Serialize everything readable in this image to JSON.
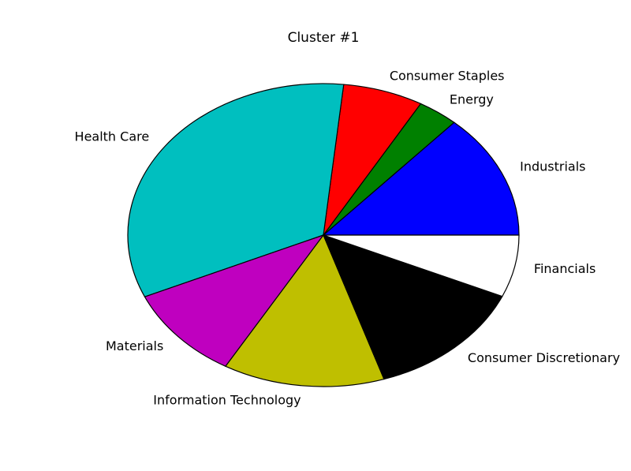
{
  "chart_data": {
    "type": "pie",
    "title": "Cluster #1",
    "start_angle_deg": 0,
    "direction": "counterclockwise",
    "slices": [
      {
        "label": "Industrials",
        "value": 14.3,
        "color": "#0000ff"
      },
      {
        "label": "Energy",
        "value": 3.6,
        "color": "#008000"
      },
      {
        "label": "Consumer Staples",
        "value": 7.1,
        "color": "#ff0000"
      },
      {
        "label": "Health Care",
        "value": 35.7,
        "color": "#00bfbf"
      },
      {
        "label": "Materials",
        "value": 10.7,
        "color": "#bf00bf"
      },
      {
        "label": "Information Technology",
        "value": 14.3,
        "color": "#bfbf00"
      },
      {
        "label": "Consumer Discretionary",
        "value": 14.3,
        "color": "#000000"
      },
      {
        "label": "Financials",
        "value": 7.1,
        "color": "#ffffff"
      }
    ]
  }
}
